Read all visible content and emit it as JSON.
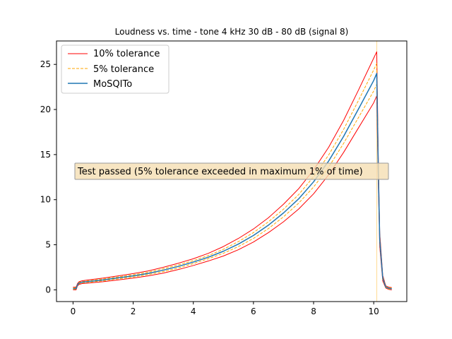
{
  "chart_data": {
    "type": "line",
    "title": "Loudness vs. time - tone 4 kHz 30 dB - 80 dB (signal 8)",
    "xlabel": "",
    "ylabel": "",
    "xlim": [
      -0.55,
      11.1
    ],
    "ylim": [
      -1.3,
      27.6
    ],
    "xticks": [
      0,
      2,
      4,
      6,
      8,
      10
    ],
    "yticks": [
      0,
      5,
      10,
      15,
      20,
      25
    ],
    "grid": false,
    "legend_position": "top-left",
    "annotation": "Test passed (5% tolerance exceeded in maximum 1% of time)",
    "annotation_anchor": {
      "x": 0.2,
      "y": 13.1
    },
    "vline_x": 10.1,
    "series": [
      {
        "name": "10% tolerance",
        "color": "#ff0000",
        "style": "solid",
        "variant": "upper",
        "x": [
          0.0,
          0.1,
          0.15,
          0.2,
          0.3,
          0.5,
          1.0,
          1.5,
          2.0,
          2.5,
          3.0,
          3.5,
          4.0,
          4.5,
          5.0,
          5.5,
          6.0,
          6.5,
          7.0,
          7.5,
          8.0,
          8.5,
          9.0,
          9.5,
          10.0,
          10.1,
          10.15,
          10.2,
          10.3,
          10.4,
          10.5,
          10.6
        ],
        "y": [
          0.3,
          0.3,
          0.7,
          0.9,
          1.0,
          1.1,
          1.3,
          1.55,
          1.8,
          2.1,
          2.5,
          2.95,
          3.45,
          4.05,
          4.8,
          5.7,
          6.75,
          8.0,
          9.5,
          11.2,
          13.3,
          15.8,
          18.8,
          22.2,
          25.7,
          26.4,
          15.2,
          6.3,
          1.6,
          0.45,
          0.3,
          0.25
        ]
      },
      {
        "name": "10% tolerance",
        "color": "#ff0000",
        "style": "solid",
        "variant": "lower",
        "x": [
          0.0,
          0.1,
          0.15,
          0.2,
          0.3,
          0.5,
          1.0,
          1.5,
          2.0,
          2.5,
          3.0,
          3.5,
          4.0,
          4.5,
          5.0,
          5.5,
          6.0,
          6.5,
          7.0,
          7.5,
          8.0,
          8.5,
          9.0,
          9.5,
          10.0,
          10.1,
          10.15,
          10.2,
          10.3,
          10.4,
          10.5,
          10.6
        ],
        "y": [
          0.0,
          0.0,
          0.45,
          0.6,
          0.7,
          0.75,
          0.9,
          1.1,
          1.3,
          1.55,
          1.85,
          2.25,
          2.7,
          3.2,
          3.75,
          4.45,
          5.3,
          6.35,
          7.55,
          8.95,
          10.65,
          12.75,
          15.25,
          18.0,
          20.75,
          21.5,
          12.0,
          4.8,
          1.0,
          0.2,
          0.05,
          0.0
        ]
      },
      {
        "name": "5% tolerance",
        "color": "#ffa500",
        "style": "dashed",
        "variant": "upper",
        "x": [
          0.0,
          0.1,
          0.15,
          0.2,
          0.3,
          0.5,
          1.0,
          1.5,
          2.0,
          2.5,
          3.0,
          3.5,
          4.0,
          4.5,
          5.0,
          5.5,
          6.0,
          6.5,
          7.0,
          7.5,
          8.0,
          8.5,
          9.0,
          9.5,
          10.0,
          10.1,
          10.15,
          10.2,
          10.3,
          10.4,
          10.5,
          10.6
        ],
        "y": [
          0.22,
          0.22,
          0.65,
          0.82,
          0.92,
          1.0,
          1.2,
          1.43,
          1.67,
          1.95,
          2.33,
          2.77,
          3.24,
          3.8,
          4.5,
          5.35,
          6.35,
          7.55,
          8.95,
          10.55,
          12.55,
          14.95,
          17.8,
          21.05,
          24.4,
          25.1,
          14.4,
          5.95,
          1.45,
          0.4,
          0.24,
          0.2
        ]
      },
      {
        "name": "5% tolerance",
        "color": "#ffa500",
        "style": "dashed",
        "variant": "lower",
        "x": [
          0.0,
          0.1,
          0.15,
          0.2,
          0.3,
          0.5,
          1.0,
          1.5,
          2.0,
          2.5,
          3.0,
          3.5,
          4.0,
          4.5,
          5.0,
          5.5,
          6.0,
          6.5,
          7.0,
          7.5,
          8.0,
          8.5,
          9.0,
          9.5,
          10.0,
          10.1,
          10.15,
          10.2,
          10.3,
          10.4,
          10.5,
          10.6
        ],
        "y": [
          0.06,
          0.06,
          0.5,
          0.68,
          0.78,
          0.84,
          1.0,
          1.22,
          1.43,
          1.7,
          2.02,
          2.43,
          2.91,
          3.45,
          4.05,
          4.8,
          5.7,
          6.8,
          8.1,
          9.6,
          11.4,
          13.6,
          16.25,
          19.15,
          22.05,
          22.8,
          12.8,
          5.15,
          1.15,
          0.25,
          0.1,
          0.05
        ]
      },
      {
        "name": "MoSQITo",
        "color": "#1f77b4",
        "style": "solid",
        "variant": "main",
        "x": [
          0.0,
          0.1,
          0.15,
          0.2,
          0.3,
          0.5,
          1.0,
          1.5,
          2.0,
          2.5,
          3.0,
          3.5,
          4.0,
          4.5,
          5.0,
          5.5,
          6.0,
          6.5,
          7.0,
          7.5,
          8.0,
          8.5,
          9.0,
          9.5,
          10.0,
          10.1,
          10.15,
          10.2,
          10.3,
          10.4,
          10.5,
          10.6
        ],
        "y": [
          0.14,
          0.14,
          0.58,
          0.75,
          0.85,
          0.92,
          1.1,
          1.33,
          1.55,
          1.82,
          2.18,
          2.6,
          3.08,
          3.62,
          4.28,
          5.08,
          6.03,
          7.18,
          8.53,
          10.08,
          11.98,
          14.28,
          17.03,
          20.1,
          23.22,
          24.0,
          13.6,
          5.55,
          1.3,
          0.32,
          0.17,
          0.12
        ]
      }
    ]
  }
}
